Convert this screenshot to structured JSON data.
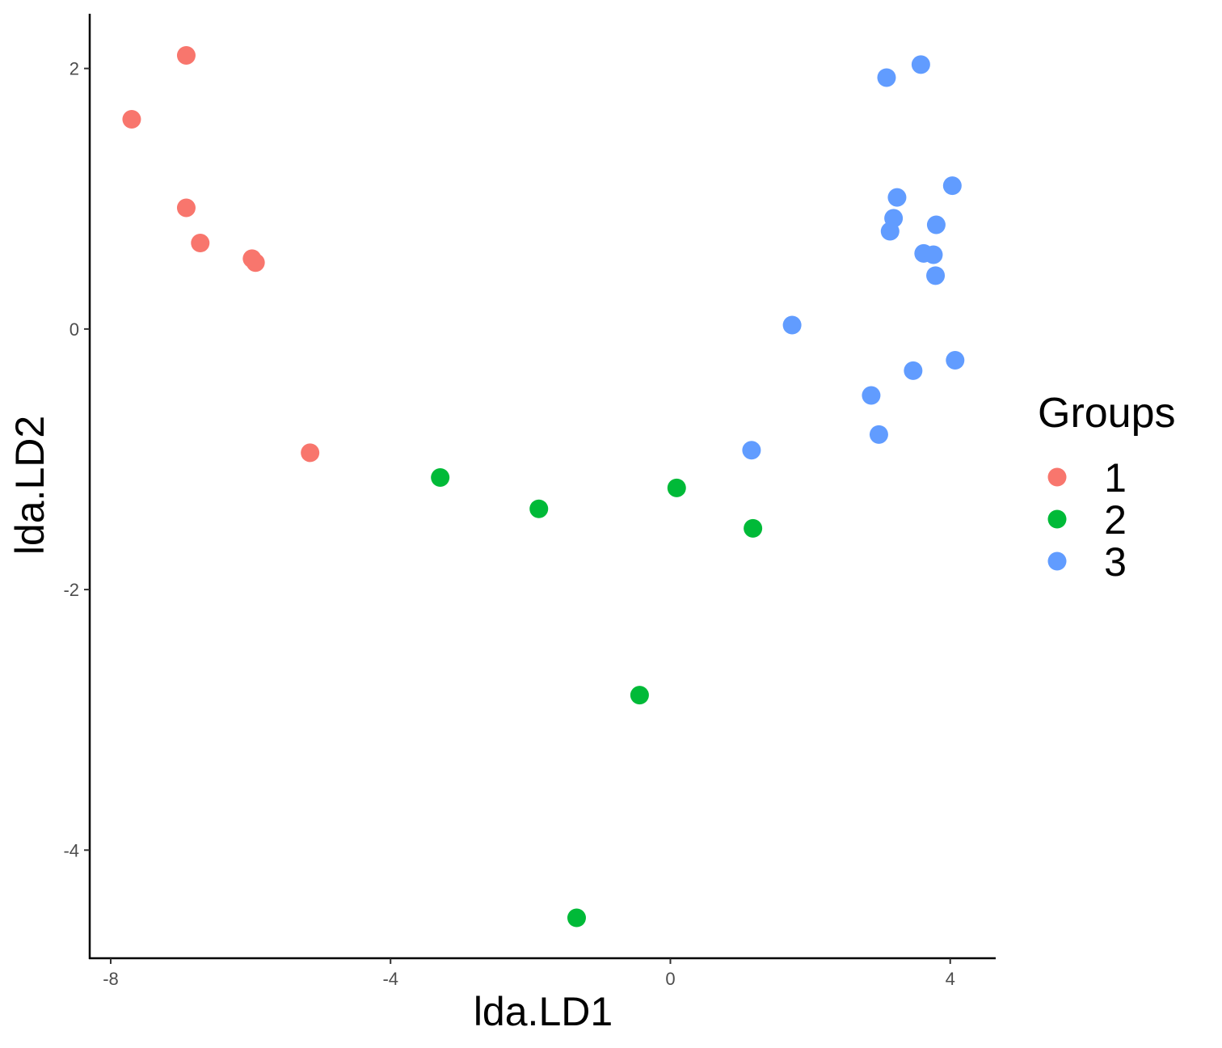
{
  "chart_data": {
    "type": "scatter",
    "xlabel": "lda.LD1",
    "ylabel": "lda.LD2",
    "xlim": [
      -8.3,
      4.65
    ],
    "ylim": [
      -4.83,
      2.42
    ],
    "x_ticks": [
      -8,
      -4,
      0,
      4
    ],
    "y_ticks": [
      2,
      0,
      -2,
      -4
    ],
    "x_tick_labels": [
      "-8",
      "-4",
      "0",
      "4"
    ],
    "y_tick_labels": [
      "2",
      "0",
      "-2",
      "-4"
    ],
    "grid": false,
    "legend": {
      "title": "Groups",
      "position": "right"
    },
    "series": [
      {
        "name": "1",
        "color": "#F8766D",
        "points": [
          {
            "x": -7.7,
            "y": 1.61
          },
          {
            "x": -6.92,
            "y": 2.1
          },
          {
            "x": -6.92,
            "y": 0.93
          },
          {
            "x": -6.72,
            "y": 0.66
          },
          {
            "x": -5.98,
            "y": 0.54
          },
          {
            "x": -5.93,
            "y": 0.51
          },
          {
            "x": -5.15,
            "y": -0.95
          }
        ]
      },
      {
        "name": "2",
        "color": "#00BA38",
        "points": [
          {
            "x": -3.29,
            "y": -1.14
          },
          {
            "x": -1.88,
            "y": -1.38
          },
          {
            "x": 0.09,
            "y": -1.22
          },
          {
            "x": 1.18,
            "y": -1.53
          },
          {
            "x": -0.44,
            "y": -2.81
          },
          {
            "x": -1.34,
            "y": -4.52
          }
        ]
      },
      {
        "name": "3",
        "color": "#619CFF",
        "points": [
          {
            "x": 3.09,
            "y": 1.93
          },
          {
            "x": 3.58,
            "y": 2.03
          },
          {
            "x": 4.03,
            "y": 1.1
          },
          {
            "x": 3.24,
            "y": 1.01
          },
          {
            "x": 3.19,
            "y": 0.85
          },
          {
            "x": 3.8,
            "y": 0.8
          },
          {
            "x": 3.14,
            "y": 0.75
          },
          {
            "x": 3.62,
            "y": 0.58
          },
          {
            "x": 3.76,
            "y": 0.57
          },
          {
            "x": 3.79,
            "y": 0.41
          },
          {
            "x": 1.74,
            "y": 0.03
          },
          {
            "x": 4.07,
            "y": -0.24
          },
          {
            "x": 3.47,
            "y": -0.32
          },
          {
            "x": 2.87,
            "y": -0.51
          },
          {
            "x": 2.98,
            "y": -0.81
          },
          {
            "x": 1.16,
            "y": -0.93
          }
        ]
      }
    ]
  }
}
